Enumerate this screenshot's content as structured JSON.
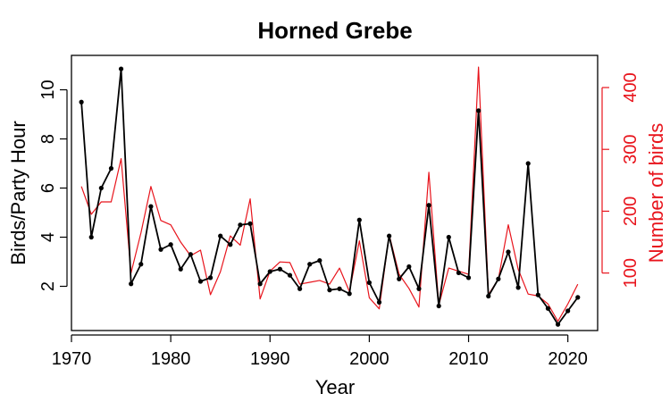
{
  "chart_data": {
    "type": "line",
    "title": "Horned Grebe",
    "xlabel": "Year",
    "ylabel": "Birds/Party Hour",
    "y2label": "Number of birds",
    "xlim": [
      1970,
      2023
    ],
    "ylim": [
      0.2,
      11.4
    ],
    "y2lim": [
      7,
      452
    ],
    "x_ticks": [
      "1970",
      "1980",
      "1990",
      "2000",
      "2010",
      "2020"
    ],
    "y_ticks": [
      "2",
      "4",
      "6",
      "8",
      "10"
    ],
    "y2_ticks": [
      "100",
      "200",
      "300",
      "400"
    ],
    "grid": false,
    "legend": "none",
    "colors": {
      "primary": "#000000",
      "secondary": "#e8141c"
    },
    "x": [
      1971,
      1972,
      1973,
      1974,
      1975,
      1976,
      1977,
      1978,
      1979,
      1980,
      1981,
      1982,
      1983,
      1984,
      1985,
      1986,
      1987,
      1988,
      1989,
      1990,
      1991,
      1992,
      1993,
      1994,
      1995,
      1996,
      1997,
      1998,
      1999,
      2000,
      2001,
      2002,
      2003,
      2004,
      2005,
      2006,
      2007,
      2008,
      2009,
      2010,
      2011,
      2012,
      2013,
      2014,
      2015,
      2016,
      2017,
      2018,
      2019,
      2020,
      2021
    ],
    "series": [
      {
        "axis": "left",
        "values": [
          9.5,
          4.0,
          6.0,
          6.8,
          10.85,
          2.1,
          2.9,
          5.25,
          3.5,
          3.7,
          2.7,
          3.3,
          2.2,
          2.35,
          4.05,
          3.7,
          4.5,
          4.55,
          2.1,
          2.6,
          2.7,
          2.45,
          1.9,
          2.9,
          3.05,
          1.85,
          1.9,
          1.7,
          4.7,
          2.15,
          1.35,
          4.05,
          2.3,
          2.8,
          1.9,
          5.3,
          1.2,
          4.0,
          2.55,
          2.35,
          9.15,
          1.6,
          2.3,
          3.4,
          1.95,
          7.0,
          1.65,
          1.1,
          0.45,
          1.0,
          1.55
        ]
      },
      {
        "axis": "right",
        "values": [
          240,
          195,
          215,
          215,
          285,
          100,
          165,
          240,
          185,
          178,
          150,
          128,
          137,
          65,
          102,
          160,
          145,
          220,
          58,
          103,
          118,
          117,
          82,
          85,
          88,
          82,
          108,
          70,
          152,
          60,
          42,
          162,
          98,
          75,
          45,
          263,
          48,
          108,
          103,
          98,
          433,
          65,
          90,
          178,
          106,
          66,
          63,
          50,
          22,
          50,
          82
        ]
      }
    ]
  }
}
